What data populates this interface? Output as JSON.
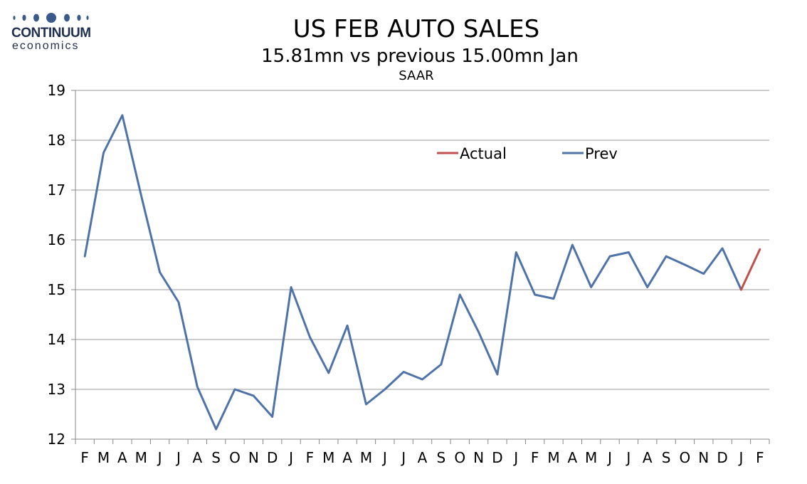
{
  "logo": {
    "word": "CONTINUUM",
    "sub": "economics"
  },
  "chart_data": {
    "type": "line",
    "title": "US FEB AUTO SALES",
    "subtitle": "15.81mn vs previous 15.00mn Jan",
    "subtitle2": "SAAR",
    "xlabel": "",
    "ylabel": "",
    "ylim": [
      12,
      19
    ],
    "yticks": [
      12,
      13,
      14,
      15,
      16,
      17,
      18,
      19
    ],
    "grid": true,
    "legend_position": "top-right",
    "categories": [
      "F",
      "M",
      "A",
      "M",
      "J",
      "J",
      "A",
      "S",
      "O",
      "N",
      "D",
      "J",
      "F",
      "M",
      "A",
      "M",
      "J",
      "J",
      "A",
      "S",
      "O",
      "N",
      "D",
      "J",
      "F",
      "M",
      "A",
      "M",
      "J",
      "J",
      "A",
      "S",
      "O",
      "N",
      "D",
      "J",
      "F"
    ],
    "series": [
      {
        "name": "Actual",
        "color": "#c0504d",
        "values": [
          null,
          null,
          null,
          null,
          null,
          null,
          null,
          null,
          null,
          null,
          null,
          null,
          null,
          null,
          null,
          null,
          null,
          null,
          null,
          null,
          null,
          null,
          null,
          null,
          null,
          null,
          null,
          null,
          null,
          null,
          null,
          null,
          null,
          null,
          null,
          15.0,
          15.81
        ]
      },
      {
        "name": "Prev",
        "color": "#4f73a8",
        "values": [
          15.67,
          17.75,
          18.5,
          16.9,
          15.35,
          14.75,
          13.05,
          12.2,
          13.0,
          12.87,
          12.45,
          15.05,
          14.05,
          13.33,
          14.28,
          12.7,
          13.0,
          13.35,
          13.2,
          13.5,
          14.9,
          14.15,
          13.3,
          15.75,
          14.9,
          14.82,
          15.9,
          15.05,
          15.67,
          15.75,
          15.05,
          15.67,
          15.5,
          15.32,
          15.83,
          15.0,
          null
        ]
      }
    ]
  }
}
